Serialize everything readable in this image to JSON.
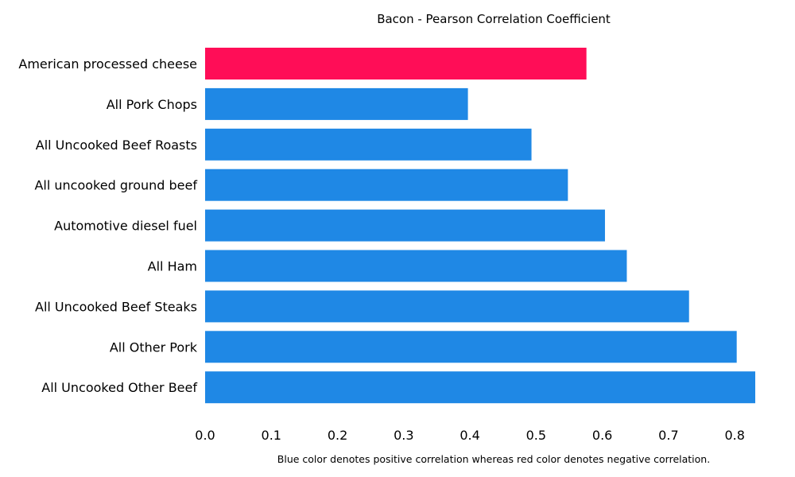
{
  "chart_data": {
    "type": "bar",
    "orientation": "horizontal",
    "title": "Bacon - Pearson Correlation Coefficient",
    "note": "Blue color denotes positive correlation whereas red color denotes negative correlation.",
    "categories": [
      "American processed cheese",
      "All Pork Chops",
      "All Uncooked Beef Roasts",
      "All uncooked ground beef",
      "Automotive diesel fuel",
      "All Ham",
      "All Uncooked Beef Steaks",
      "All Other Pork",
      "All Uncooked Other Beef"
    ],
    "values": [
      0.576,
      0.397,
      0.493,
      0.548,
      0.604,
      0.637,
      0.731,
      0.803,
      0.831
    ],
    "signs": [
      "negative",
      "positive",
      "positive",
      "positive",
      "positive",
      "positive",
      "positive",
      "positive",
      "positive"
    ],
    "xlim": [
      0,
      0.831
    ],
    "xticks": [
      "0.0",
      "0.1",
      "0.2",
      "0.3",
      "0.4",
      "0.5",
      "0.6",
      "0.7",
      "0.8"
    ],
    "grid": false,
    "colors": {
      "positive": "#1f88e5",
      "negative": "#ff0d57"
    }
  }
}
